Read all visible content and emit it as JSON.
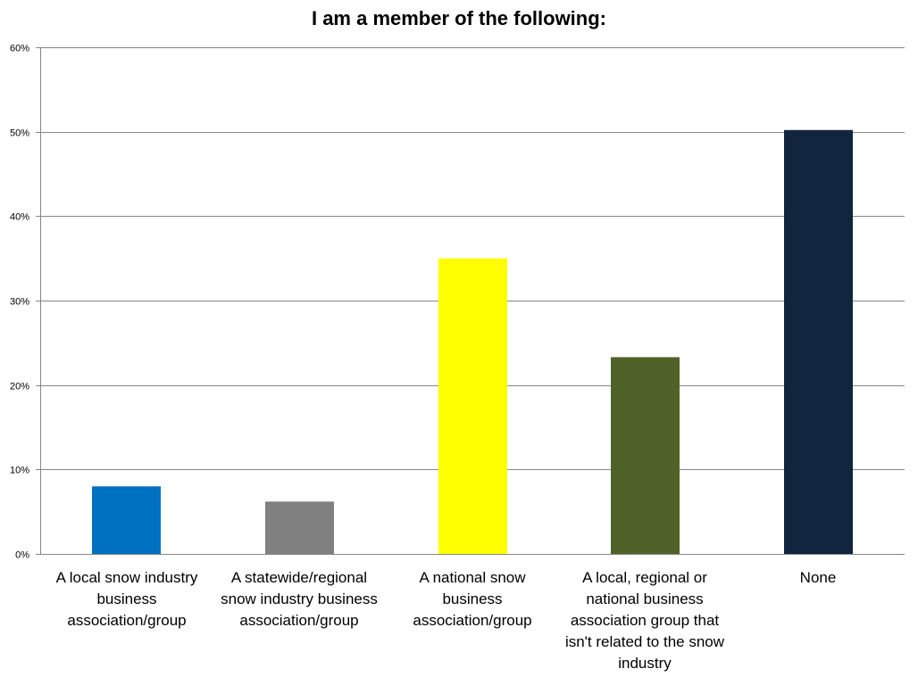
{
  "chart_data": {
    "type": "bar",
    "title": "I am a member of the following:",
    "xlabel": "",
    "ylabel": "",
    "ylim": [
      0,
      0.6
    ],
    "y_ticks": [
      {
        "value": 0.0,
        "label": "0%"
      },
      {
        "value": 0.1,
        "label": "10%"
      },
      {
        "value": 0.2,
        "label": "20%"
      },
      {
        "value": 0.3,
        "label": "30%"
      },
      {
        "value": 0.4,
        "label": "40%"
      },
      {
        "value": 0.5,
        "label": "50%"
      },
      {
        "value": 0.6,
        "label": "60%"
      }
    ],
    "grid": true,
    "legend": "none",
    "categories": [
      "A local snow industry business association/group",
      "A statewide/regional snow industry business association/group",
      "A national snow business association/group",
      "A local, regional or national business association group that isn't related to the snow industry",
      "None"
    ],
    "values": [
      0.08,
      0.062,
      0.35,
      0.233,
      0.502
    ],
    "colors": [
      "#0070C0",
      "#808080",
      "#FFFF00",
      "#4F6228",
      "#12253F"
    ]
  }
}
